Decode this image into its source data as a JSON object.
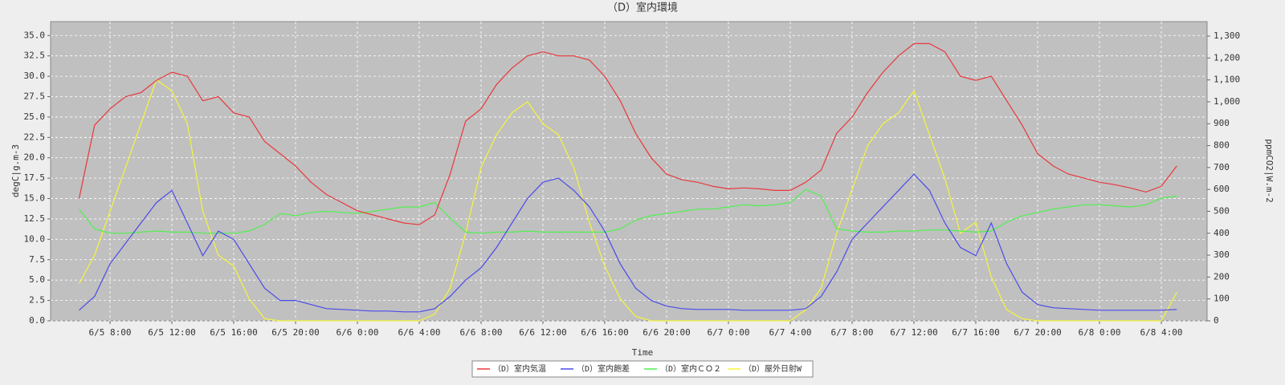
{
  "chart_data": {
    "type": "line",
    "title": "（D）室内環境",
    "xlabel": "Time",
    "ylabel": "degC|g.m-3",
    "y2label": "ppmCO2|W.m-2",
    "x": [
      "6/5 6:00",
      "6/5 7:00",
      "6/5 8:00",
      "6/5 9:00",
      "6/5 10:00",
      "6/5 11:00",
      "6/5 12:00",
      "6/5 13:00",
      "6/5 14:00",
      "6/5 15:00",
      "6/5 16:00",
      "6/5 17:00",
      "6/5 18:00",
      "6/5 19:00",
      "6/5 20:00",
      "6/5 21:00",
      "6/5 22:00",
      "6/5 23:00",
      "6/6 0:00",
      "6/6 1:00",
      "6/6 2:00",
      "6/6 3:00",
      "6/6 4:00",
      "6/6 5:00",
      "6/6 6:00",
      "6/6 7:00",
      "6/6 8:00",
      "6/6 9:00",
      "6/6 10:00",
      "6/6 11:00",
      "6/6 12:00",
      "6/6 13:00",
      "6/6 14:00",
      "6/6 15:00",
      "6/6 16:00",
      "6/6 17:00",
      "6/6 18:00",
      "6/6 19:00",
      "6/6 20:00",
      "6/6 21:00",
      "6/6 22:00",
      "6/6 23:00",
      "6/7 0:00",
      "6/7 1:00",
      "6/7 2:00",
      "6/7 3:00",
      "6/7 4:00",
      "6/7 5:00",
      "6/7 6:00",
      "6/7 7:00",
      "6/7 8:00",
      "6/7 9:00",
      "6/7 10:00",
      "6/7 11:00",
      "6/7 12:00",
      "6/7 13:00",
      "6/7 14:00",
      "6/7 15:00",
      "6/7 16:00",
      "6/7 17:00",
      "6/7 18:00",
      "6/7 19:00",
      "6/7 20:00",
      "6/7 21:00",
      "6/7 22:00",
      "6/7 23:00",
      "6/8 0:00",
      "6/8 1:00",
      "6/8 2:00",
      "6/8 3:00",
      "6/8 4:00",
      "6/8 5:00"
    ],
    "xticks": [
      "6/5 8:00",
      "6/5 12:00",
      "6/5 16:00",
      "6/5 20:00",
      "6/6 0:00",
      "6/6 4:00",
      "6/6 8:00",
      "6/6 12:00",
      "6/6 16:00",
      "6/6 20:00",
      "6/7 0:00",
      "6/7 4:00",
      "6/7 8:00",
      "6/7 12:00",
      "6/7 16:00",
      "6/7 20:00",
      "6/8 0:00",
      "6/8 4:00"
    ],
    "ylim": [
      0,
      36.7
    ],
    "yticks": [
      {
        "value": 0,
        "label": "0.0"
      },
      2.5,
      {
        "value": 5,
        "label": "5.0"
      },
      7.5,
      {
        "value": 10,
        "label": "10.0"
      },
      12.5,
      {
        "value": 15,
        "label": "15.0"
      },
      17.5,
      {
        "value": 20,
        "label": "20.0"
      },
      22.5,
      {
        "value": 25,
        "label": "25.0"
      },
      27.5,
      {
        "value": 30,
        "label": "30.0"
      },
      32.5,
      {
        "value": 35,
        "label": "35.0"
      }
    ],
    "y2lim": [
      0,
      1366
    ],
    "y2ticks": [
      0,
      100,
      200,
      300,
      400,
      500,
      600,
      700,
      800,
      900,
      {
        "value": 1000,
        "label": "1,000"
      },
      {
        "value": 1100,
        "label": "1,100"
      },
      {
        "value": 1200,
        "label": "1,200"
      },
      {
        "value": 1300,
        "label": "1,300"
      }
    ],
    "grid": true,
    "series": [
      {
        "name": "（D）室内気温",
        "color": "#e8383d",
        "values": [
          15,
          24,
          26,
          27.5,
          28,
          29.5,
          30.5,
          30,
          27,
          27.5,
          25.5,
          25,
          22,
          20.5,
          19,
          17,
          15.5,
          14.5,
          13.5,
          13,
          12.5,
          12,
          11.8,
          13,
          18,
          24.5,
          26,
          29,
          31,
          32.5,
          33,
          32.5,
          32.5,
          32,
          30,
          27,
          23,
          20,
          18,
          17.3,
          17,
          16.5,
          16.2,
          16.3,
          16.2,
          16,
          16,
          17,
          18.5,
          23,
          25,
          28,
          30.5,
          32.5,
          34,
          34,
          33,
          30,
          29.5,
          30,
          27,
          24,
          20.5,
          19,
          18,
          17.5,
          17,
          16.7,
          16.3,
          15.8,
          16.5,
          19
        ]
      },
      {
        "name": "（D）室内飽差",
        "color": "#4b4bea",
        "values": [
          1.3,
          3,
          7,
          9.5,
          12,
          14.5,
          16,
          12,
          8,
          11,
          10,
          7,
          4,
          2.5,
          2.5,
          2,
          1.5,
          1.4,
          1.3,
          1.2,
          1.2,
          1.1,
          1.1,
          1.5,
          3,
          5,
          6.5,
          9,
          12,
          15,
          17,
          17.5,
          16,
          14,
          11,
          7,
          4,
          2.5,
          1.8,
          1.5,
          1.4,
          1.4,
          1.4,
          1.3,
          1.3,
          1.3,
          1.3,
          1.5,
          3,
          6,
          10,
          12,
          14,
          16,
          18,
          16,
          12,
          9,
          8,
          12,
          7,
          3.5,
          2,
          1.6,
          1.5,
          1.4,
          1.3,
          1.3,
          1.3,
          1.3,
          1.3,
          1.4
        ]
      },
      {
        "name": "（D）室内ＣＯ２",
        "color": "#4ff04f",
        "axis": "y2",
        "values": [
          510,
          420,
          400,
          400,
          405,
          410,
          405,
          405,
          400,
          400,
          400,
          410,
          440,
          490,
          480,
          495,
          500,
          495,
          490,
          500,
          510,
          520,
          520,
          540,
          470,
          405,
          400,
          405,
          405,
          410,
          405,
          405,
          405,
          405,
          405,
          420,
          460,
          480,
          490,
          500,
          510,
          510,
          520,
          530,
          525,
          530,
          540,
          600,
          570,
          420,
          410,
          405,
          405,
          410,
          410,
          415,
          415,
          410,
          405,
          410,
          450,
          480,
          495,
          510,
          520,
          530,
          530,
          525,
          520,
          530,
          560,
          570
        ]
      },
      {
        "name": "（D）屋外日射W",
        "color": "#f5f53c",
        "axis": "y2",
        "values": [
          170,
          300,
          500,
          700,
          900,
          1100,
          1050,
          900,
          500,
          300,
          250,
          100,
          10,
          0,
          0,
          0,
          0,
          0,
          0,
          0,
          0,
          0,
          0,
          30,
          150,
          400,
          700,
          850,
          950,
          1000,
          900,
          850,
          700,
          450,
          250,
          100,
          20,
          0,
          0,
          0,
          0,
          0,
          0,
          0,
          0,
          0,
          0,
          50,
          150,
          400,
          600,
          800,
          900,
          950,
          1050,
          850,
          650,
          400,
          450,
          200,
          50,
          10,
          0,
          0,
          0,
          0,
          0,
          0,
          0,
          0,
          0,
          130
        ]
      }
    ]
  }
}
